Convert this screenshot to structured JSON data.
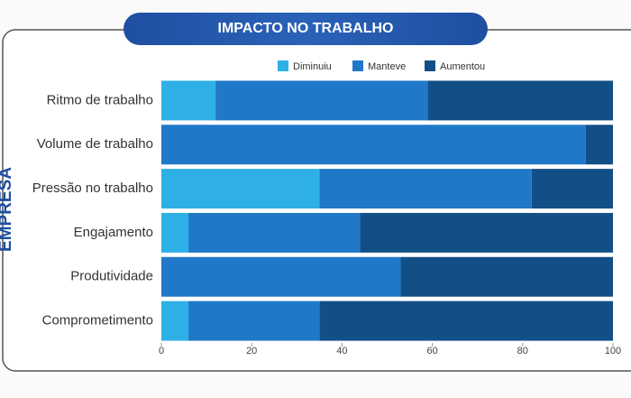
{
  "chart_data": {
    "type": "stacked_barh",
    "title": "IMPACTO NO TRABALHO",
    "ylabel": "EMPRESA",
    "categories": [
      "Ritmo de trabalho",
      "Volume de trabalho",
      "Pressão no trabalho",
      "Engajamento",
      "Produtividade",
      "Comprometimento"
    ],
    "series": [
      {
        "name": "Diminuiu",
        "color": "#2eb0e6",
        "values": [
          12,
          0,
          35,
          6,
          0,
          6
        ]
      },
      {
        "name": "Manteve",
        "color": "#1f78c8",
        "values": [
          47,
          94,
          47,
          38,
          53,
          29
        ]
      },
      {
        "name": "Aumentou",
        "color": "#134f87",
        "values": [
          41,
          6,
          18,
          56,
          47,
          65
        ]
      }
    ],
    "xlim": [
      0,
      100
    ],
    "xticks": [
      0,
      20,
      40,
      60,
      80,
      100
    ],
    "legend": "top"
  }
}
